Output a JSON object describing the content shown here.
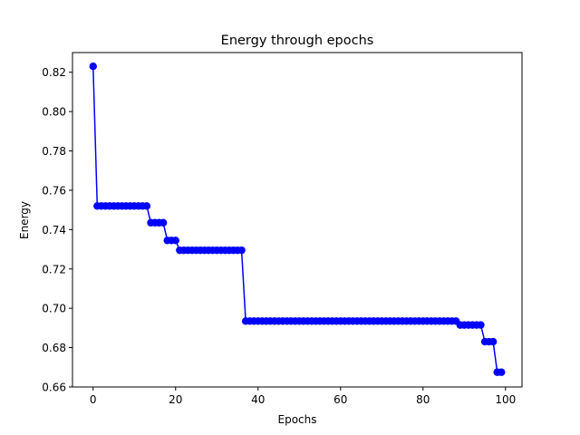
{
  "chart_data": {
    "type": "line",
    "title": "Energy through epochs",
    "xlabel": "Epochs",
    "ylabel": "Energy",
    "xlim": [
      -5,
      104
    ],
    "ylim": [
      0.66,
      0.83
    ],
    "xticks": [
      0,
      20,
      40,
      60,
      80,
      100
    ],
    "yticks": [
      0.66,
      0.68,
      0.7,
      0.72,
      0.74,
      0.76,
      0.78,
      0.8,
      0.82
    ],
    "ytick_labels": [
      "0.66",
      "0.68",
      "0.70",
      "0.72",
      "0.74",
      "0.76",
      "0.78",
      "0.80",
      "0.82"
    ],
    "grid": false,
    "marker": "circle",
    "line_color": "#0000ff",
    "series": [
      {
        "x": [
          0,
          1,
          2,
          3,
          4,
          5,
          6,
          7,
          8,
          9,
          10,
          11,
          12,
          13,
          14,
          15,
          16,
          17,
          18,
          19,
          20,
          21,
          22,
          23,
          24,
          25,
          26,
          27,
          28,
          29,
          30,
          31,
          32,
          33,
          34,
          35,
          36,
          37,
          38,
          39,
          40,
          41,
          42,
          43,
          44,
          45,
          46,
          47,
          48,
          49,
          50,
          51,
          52,
          53,
          54,
          55,
          56,
          57,
          58,
          59,
          60,
          61,
          62,
          63,
          64,
          65,
          66,
          67,
          68,
          69,
          70,
          71,
          72,
          73,
          74,
          75,
          76,
          77,
          78,
          79,
          80,
          81,
          82,
          83,
          84,
          85,
          86,
          87,
          88,
          89,
          90,
          91,
          92,
          93,
          94,
          95,
          96,
          97,
          98,
          99
        ],
        "y": [
          0.823,
          0.752,
          0.752,
          0.752,
          0.752,
          0.752,
          0.752,
          0.752,
          0.752,
          0.752,
          0.752,
          0.752,
          0.752,
          0.752,
          0.7435,
          0.7435,
          0.7435,
          0.7435,
          0.7345,
          0.7345,
          0.7345,
          0.7295,
          0.7295,
          0.7295,
          0.7295,
          0.7295,
          0.7295,
          0.7295,
          0.7295,
          0.7295,
          0.7295,
          0.7295,
          0.7295,
          0.7295,
          0.7295,
          0.7295,
          0.7295,
          0.6935,
          0.6935,
          0.6935,
          0.6935,
          0.6935,
          0.6935,
          0.6935,
          0.6935,
          0.6935,
          0.6935,
          0.6935,
          0.6935,
          0.6935,
          0.6935,
          0.6935,
          0.6935,
          0.6935,
          0.6935,
          0.6935,
          0.6935,
          0.6935,
          0.6935,
          0.6935,
          0.6935,
          0.6935,
          0.6935,
          0.6935,
          0.6935,
          0.6935,
          0.6935,
          0.6935,
          0.6935,
          0.6935,
          0.6935,
          0.6935,
          0.6935,
          0.6935,
          0.6935,
          0.6935,
          0.6935,
          0.6935,
          0.6935,
          0.6935,
          0.6935,
          0.6935,
          0.6935,
          0.6935,
          0.6935,
          0.6935,
          0.6935,
          0.6935,
          0.6935,
          0.6915,
          0.6915,
          0.6915,
          0.6915,
          0.6915,
          0.6915,
          0.683,
          0.683,
          0.683,
          0.6675,
          0.6675
        ]
      }
    ]
  }
}
